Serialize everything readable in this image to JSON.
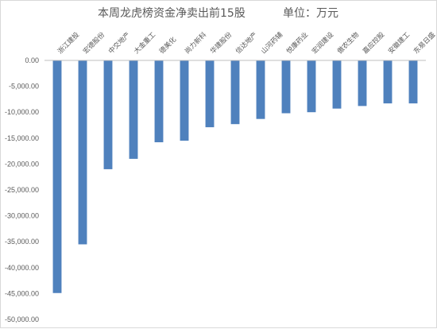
{
  "chart_data": {
    "type": "bar",
    "title": "本周龙虎榜资金净卖出前15股",
    "unit_label": "单位：万元",
    "categories": [
      "浙江建投",
      "宏德股份",
      "中交地产",
      "大金重工",
      "德美化",
      "尚力新科",
      "华建股份",
      "信达地产",
      "山河药辅",
      "悦康药业",
      "宏润建设",
      "傲农生物",
      "嘉应控股",
      "安徽建工",
      "东易日盛"
    ],
    "values": [
      -44900,
      -35500,
      -21000,
      -19000,
      -15800,
      -15500,
      -12900,
      -12300,
      -11300,
      -10200,
      -10000,
      -9300,
      -8800,
      -8300,
      -8300
    ],
    "yticks": [
      "0.00",
      "-5,000.00",
      "-10,000.00",
      "-15,000.00",
      "-20,000.00",
      "-25,000.00",
      "-30,000.00",
      "-35,000.00",
      "-40,000.00",
      "-45,000.00",
      "-50,000.00"
    ],
    "ylim": [
      -50000,
      0
    ],
    "bar_color": "#4f81bd",
    "grid": false
  }
}
